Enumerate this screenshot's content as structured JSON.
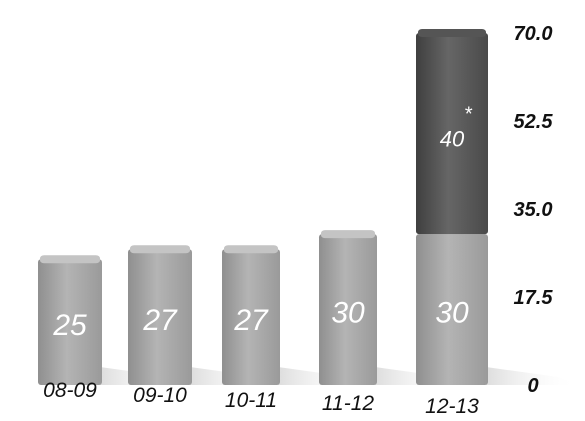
{
  "chart_data": {
    "type": "bar",
    "stacked": true,
    "categories": [
      "08-09",
      "09-10",
      "10-11",
      "11-12",
      "12-13"
    ],
    "series": [
      {
        "values": [
          25,
          27,
          27,
          30,
          30
        ],
        "color": "#a6a6a6"
      },
      {
        "values": [
          0,
          0,
          0,
          0,
          40
        ],
        "color": "#5b5b5b"
      }
    ],
    "annotations": [
      {
        "category": "12-13",
        "series": 1,
        "text": "*"
      }
    ],
    "y_ticks": [
      "0",
      "17.5",
      "35.0",
      "52.5",
      "70.0"
    ],
    "y_tick_values": [
      0,
      17.5,
      35,
      52.5,
      70
    ],
    "ylim": [
      0,
      70
    ],
    "y_axis_position": "right",
    "grid": false,
    "title": "",
    "xlabel": "",
    "ylabel": ""
  }
}
